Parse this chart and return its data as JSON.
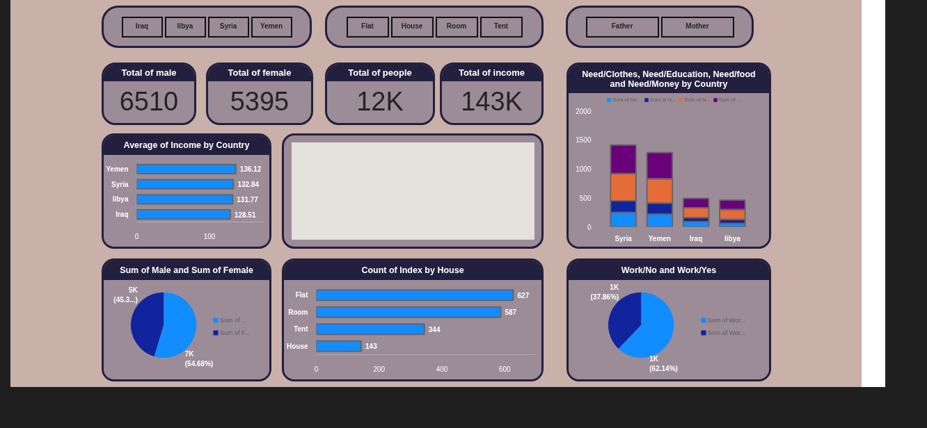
{
  "chart_data": [
    {
      "type": "other",
      "categories": [
        "Iraq",
        "libya",
        "Syria",
        "Yemen"
      ]
    },
    {
      "type": "other",
      "categories": [
        "Flat",
        "House",
        "Room",
        "Tent"
      ]
    },
    {
      "type": "other",
      "categories": [
        "Father",
        "Mother"
      ]
    },
    {
      "type": "other",
      "title": "Total of male",
      "annotations": [
        "6510"
      ]
    },
    {
      "type": "other",
      "title": "Total of female",
      "annotations": [
        "5395"
      ]
    },
    {
      "type": "other",
      "title": "Total of people",
      "annotations": [
        "12K"
      ]
    },
    {
      "type": "other",
      "title": "Total of income",
      "annotations": [
        "143K"
      ]
    },
    {
      "type": "bar",
      "stacked": true,
      "title": "Need/Clothes, Need/Education, Need/food and Need/Money by Country",
      "categories": [
        "Syria",
        "Yemen",
        "Iraq",
        "libya"
      ],
      "series": [
        {
          "name": "Sum of Ne...",
          "color": "#118dff",
          "values": [
            250,
            220,
            90,
            60
          ]
        },
        {
          "name": "Sum of N...",
          "color": "#12239e",
          "values": [
            200,
            190,
            70,
            70
          ]
        },
        {
          "name": "Sum of N...",
          "color": "#e66c37",
          "values": [
            470,
            420,
            170,
            170
          ]
        },
        {
          "name": "Sum of ...",
          "color": "#6b007b",
          "values": [
            490,
            450,
            160,
            160
          ]
        }
      ],
      "ylim": [
        0,
        2000
      ],
      "yticks": [
        0,
        500,
        1000,
        1500,
        2000
      ],
      "legend": "top left"
    },
    {
      "type": "bar",
      "orientation": "horizontal",
      "title": "Average of Income by Country",
      "categories": [
        "Yemen",
        "Syria",
        "libya",
        "Iraq"
      ],
      "values": [
        136.12,
        132.84,
        131.77,
        128.51
      ],
      "color": "#118dff",
      "xlim": [
        0,
        175
      ],
      "xticks": [
        0,
        100
      ],
      "data_labels": true
    },
    {
      "type": "pie",
      "title": "Sum of Male and Sum of Female",
      "categories": [
        "Sum of ...",
        "Sum of F..."
      ],
      "values": [
        54.68,
        45.32
      ],
      "colors": [
        "#118dff",
        "#12239e"
      ],
      "value_labels": [
        "7K\n(54.68%)",
        "5K\n(45.3...)"
      ],
      "legend": "right"
    },
    {
      "type": "bar",
      "orientation": "horizontal",
      "title": "Count of Index by House",
      "categories": [
        "Flat",
        "Room",
        "Tent",
        "House"
      ],
      "values": [
        627,
        587,
        344,
        143
      ],
      "color": "#118dff",
      "xlim": [
        0,
        700
      ],
      "xticks": [
        0,
        200,
        400,
        600
      ],
      "data_labels": true
    },
    {
      "type": "pie",
      "title": "Work/No and Work/Yes",
      "categories": [
        "Sum of Wor...",
        "Sum of Wor..."
      ],
      "values": [
        62.14,
        37.86
      ],
      "colors": [
        "#118dff",
        "#12239e"
      ],
      "value_labels": [
        "1K\n(62.14%)",
        "1K\n(37.86%)"
      ],
      "legend": "right"
    }
  ]
}
